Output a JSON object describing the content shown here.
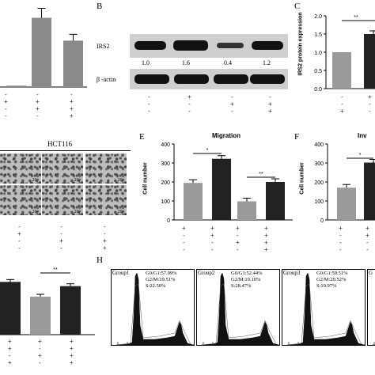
{
  "panelA": {
    "chart_data": {
      "type": "bar",
      "values": [
        2,
        100,
        67
      ],
      "ylim": [
        0,
        120
      ]
    },
    "signs": [
      [
        "-",
        "-",
        "-"
      ],
      [
        "+",
        "+",
        "+"
      ],
      [
        "-",
        "+",
        "+"
      ],
      [
        "-",
        "-",
        "+"
      ]
    ]
  },
  "panelB": {
    "letter": "B",
    "rows": [
      {
        "label": "IRS2"
      },
      {
        "label": "β -actin"
      }
    ],
    "values": [
      "1.0",
      "1.6",
      "0.4",
      "1.2"
    ],
    "signs": [
      [
        "-",
        "+",
        "-",
        "-"
      ],
      [
        "-",
        "-",
        "+",
        "+"
      ],
      [
        "-",
        "-",
        "-",
        "+"
      ]
    ]
  },
  "panelC": {
    "letter": "C",
    "chart_data": {
      "type": "bar",
      "values": [
        1.0,
        1.5
      ],
      "ylabel": "IRS2 protein expression",
      "yticks": [
        "2.0",
        "1.5",
        "1.0",
        "0.5",
        "0.0"
      ],
      "ylim": [
        0,
        2.0
      ],
      "significance": "**"
    },
    "signs": [
      [
        "-",
        "+"
      ],
      [
        "-",
        "-"
      ],
      [
        "+",
        "-"
      ]
    ]
  },
  "panelD": {
    "title": "HCT116",
    "magnification": "20×",
    "signs": [
      [
        "-",
        "-",
        "-"
      ],
      [
        "+",
        "-",
        "-"
      ],
      [
        "-",
        "+",
        "+"
      ],
      [
        "-",
        "-",
        "+"
      ]
    ]
  },
  "panelE": {
    "letter": "E",
    "chart_data": {
      "type": "bar",
      "title": "Migration",
      "ylabel": "Cell number",
      "yticks": [
        "400",
        "300",
        "200",
        "100",
        "0"
      ],
      "ylim": [
        0,
        400
      ],
      "values": [
        195,
        322,
        98,
        200
      ],
      "colors": [
        "#9a9a9a",
        "#222222",
        "#9a9a9a",
        "#222222"
      ],
      "significance": [
        "*",
        "**"
      ]
    },
    "signs": [
      [
        "+",
        "+",
        "+",
        "+"
      ],
      [
        "-",
        "+",
        "-",
        "+"
      ],
      [
        "-",
        "-",
        "+",
        "+"
      ],
      [
        "-",
        "-",
        "-",
        "+"
      ]
    ]
  },
  "panelF": {
    "letter": "F",
    "chart_data": {
      "type": "bar",
      "title": "Inv",
      "ylabel": "Cell number",
      "yticks": [
        "400",
        "300",
        "200",
        "100",
        "0"
      ],
      "ylim": [
        0,
        400
      ],
      "values": [
        170,
        302
      ],
      "colors": [
        "#9a9a9a",
        "#222222"
      ],
      "significance": "*"
    },
    "signs": [
      [
        "+",
        "+"
      ],
      [
        "-",
        "+"
      ],
      [
        "-",
        "-"
      ],
      [
        "-",
        "-"
      ]
    ]
  },
  "panelG": {
    "chart_data": {
      "type": "bar",
      "values": [
        100,
        72,
        92
      ],
      "ylim": [
        0,
        120
      ],
      "colors": [
        "#222222",
        "#9a9a9a",
        "#222222"
      ],
      "significance": "**"
    },
    "signs": [
      [
        "+",
        "+",
        "+"
      ],
      [
        "+",
        "-",
        "+"
      ],
      [
        "-",
        "+",
        "+"
      ],
      [
        "+",
        "-",
        "+"
      ]
    ]
  },
  "panelH": {
    "letter": "H",
    "groups": [
      {
        "name": "Group1",
        "g0g1": "G0/G1:57.99%",
        "g2m": "G2/M:19.51%",
        "s": "S:22.50%"
      },
      {
        "name": "Group2",
        "g0g1": "G0/G1:52.44%",
        "g2m": "G2/M:19.10%",
        "s": "S:28.47%"
      },
      {
        "name": "Group3",
        "g0g1": "G0/G1:59.51%",
        "g2m": "G2/M:20.52%",
        "s": "S:19.97%"
      },
      {
        "name": "G"
      }
    ]
  }
}
